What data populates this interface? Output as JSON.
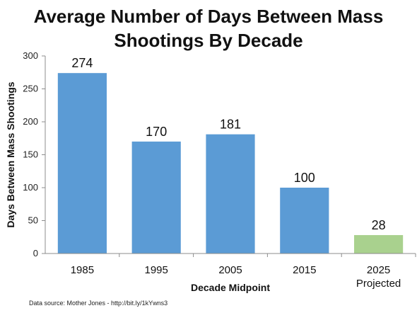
{
  "chart_data": {
    "type": "bar",
    "title_lines": [
      "Average Number of Days Between Mass",
      "Shootings By Decade"
    ],
    "categories": [
      "1985",
      "1995",
      "2005",
      "2015",
      "2025"
    ],
    "category_sublabels": [
      "",
      "",
      "",
      "",
      "Projected"
    ],
    "values": [
      274,
      170,
      181,
      100,
      28
    ],
    "bar_colors": [
      "#5b9bd5",
      "#5b9bd5",
      "#5b9bd5",
      "#5b9bd5",
      "#a9d18e"
    ],
    "xlabel": "Decade Midpoint",
    "ylabel": "Days Between Mass Shootings",
    "ylim": [
      0,
      300
    ],
    "yticks": [
      0,
      50,
      100,
      150,
      200,
      250,
      300
    ],
    "grid": false,
    "legend": "none"
  },
  "source_note": "Data source: Mother Jones - http://bit.ly/1kYwns3"
}
